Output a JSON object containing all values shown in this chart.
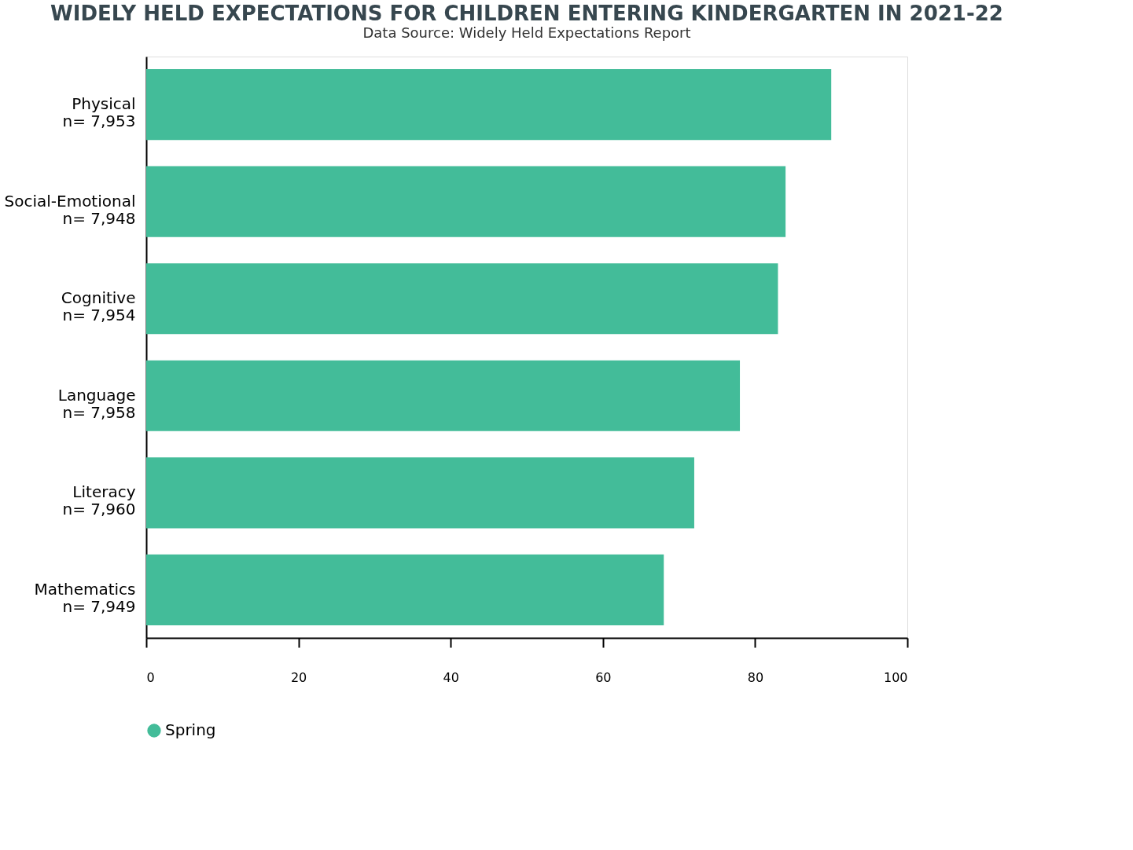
{
  "chart_data": {
    "type": "bar",
    "orientation": "horizontal",
    "title": "WIDELY HELD EXPECTATIONS FOR CHILDREN ENTERING KINDERGARTEN IN 2021-22",
    "categories": [
      "Physical\nn= 7,953",
      "Social-Emotional\nn= 7,948",
      "Cognitive\nn= 7,954",
      "Language\nn= 7,958",
      "Literacy\nn= 7,960",
      "Mathematics\nn= 7,949"
    ],
    "series": [
      {
        "name": "Spring",
        "color": "#43bc99",
        "values": [
          90,
          84,
          83,
          78,
          72,
          68
        ]
      }
    ],
    "xlim": [
      0,
      100
    ],
    "xticks": [
      0,
      20,
      40,
      60,
      80,
      100
    ],
    "grid": false,
    "legend": "bottom",
    "annotations": [
      "Data Source: Widely Held Expectations Report"
    ]
  }
}
